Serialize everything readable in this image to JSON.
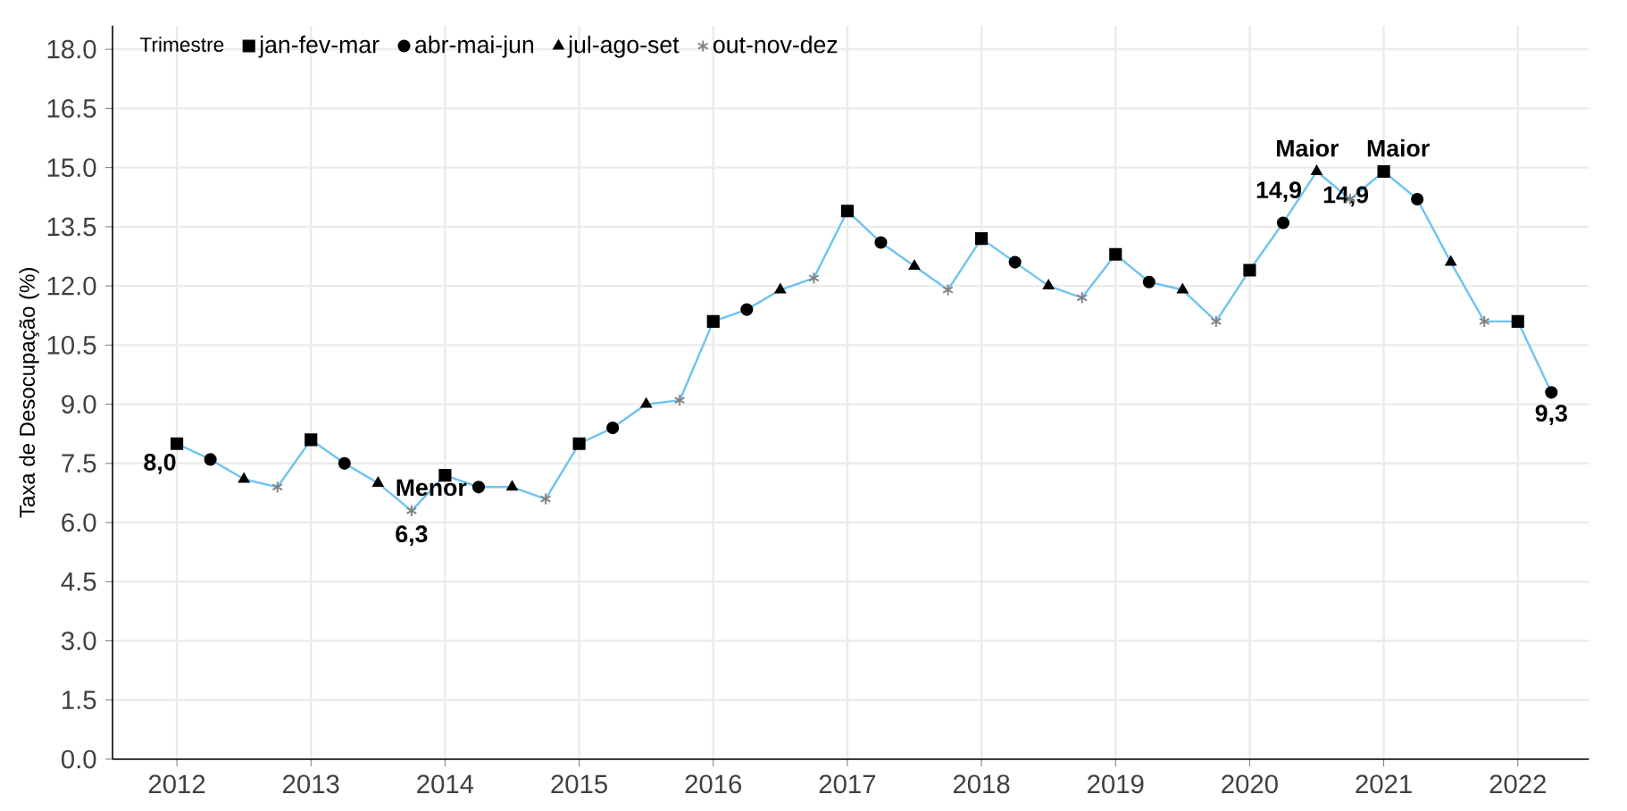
{
  "chart_data": {
    "type": "line",
    "ylabel": "Taxa de Desocupação (%)",
    "legend_title": "Trimestre",
    "xlim": [
      2011.52,
      2022.53
    ],
    "ylim": [
      0,
      18.6
    ],
    "xticks": [
      2012,
      2013,
      2014,
      2015,
      2016,
      2017,
      2018,
      2019,
      2020,
      2021,
      2022
    ],
    "yticks": [
      {
        "value": 0,
        "label": "0.0"
      },
      {
        "value": 1.5,
        "label": "1.5"
      },
      {
        "value": 3,
        "label": "3.0"
      },
      {
        "value": 4.5,
        "label": "4.5"
      },
      {
        "value": 6,
        "label": "6.0"
      },
      {
        "value": 7.5,
        "label": "7.5"
      },
      {
        "value": 9,
        "label": "9.0"
      },
      {
        "value": 10.5,
        "label": "10.5"
      },
      {
        "value": 12,
        "label": "12.0"
      },
      {
        "value": 13.5,
        "label": "13.5"
      },
      {
        "value": 15,
        "label": "15.0"
      },
      {
        "value": 16.5,
        "label": "16.5"
      },
      {
        "value": 18,
        "label": "18.0"
      }
    ],
    "grid": true,
    "legend": "top left",
    "series": [
      {
        "color": "#6ec3f0",
        "marker": "none",
        "x": [
          2012,
          2012.25,
          2012.5,
          2012.75,
          2013,
          2013.25,
          2013.5,
          2013.75,
          2014,
          2014.25,
          2014.5,
          2014.75,
          2015,
          2015.25,
          2015.5,
          2015.75,
          2016,
          2016.25,
          2016.5,
          2016.75,
          2017,
          2017.25,
          2017.5,
          2017.75,
          2018,
          2018.25,
          2018.5,
          2018.75,
          2019,
          2019.25,
          2019.5,
          2019.75,
          2020,
          2020.25,
          2020.5,
          2020.75,
          2021,
          2021.25,
          2021.5,
          2021.75,
          2022,
          2022.25
        ],
        "values": [
          8.0,
          7.6,
          7.1,
          6.9,
          8.1,
          7.5,
          7.0,
          6.3,
          7.2,
          6.9,
          6.9,
          6.6,
          8.0,
          8.4,
          9.0,
          9.1,
          11.1,
          11.4,
          11.9,
          12.2,
          13.9,
          13.1,
          12.5,
          11.9,
          13.2,
          12.6,
          12.0,
          11.7,
          12.8,
          12.1,
          11.9,
          11.1,
          12.4,
          13.6,
          14.9,
          14.2,
          14.9,
          14.2,
          12.6,
          11.1,
          11.1,
          9.3
        ]
      },
      {
        "type": "scatter",
        "name": "jan-fev-mar",
        "color": "#000000",
        "marker": "square",
        "x": [
          2012,
          2013,
          2014,
          2015,
          2016,
          2017,
          2018,
          2019,
          2020,
          2021,
          2022
        ],
        "values": [
          8.0,
          8.1,
          7.2,
          8.0,
          11.1,
          13.9,
          13.2,
          12.8,
          12.4,
          14.9,
          11.1
        ]
      },
      {
        "type": "scatter",
        "name": "abr-mai-jun",
        "color": "#000000",
        "marker": "circle",
        "x": [
          2012.25,
          2013.25,
          2014.25,
          2015.25,
          2016.25,
          2017.25,
          2018.25,
          2019.25,
          2020.25,
          2021.25,
          2022.25
        ],
        "values": [
          7.6,
          7.5,
          6.9,
          8.4,
          11.4,
          13.1,
          12.6,
          12.1,
          13.6,
          14.2,
          9.3
        ]
      },
      {
        "type": "scatter",
        "name": "jul-ago-set",
        "color": "#000000",
        "marker": "triangle",
        "x": [
          2012.5,
          2013.5,
          2014.5,
          2015.5,
          2016.5,
          2017.5,
          2018.5,
          2019.5,
          2020.5,
          2021.5
        ],
        "values": [
          7.1,
          7.0,
          6.9,
          9.0,
          11.9,
          12.5,
          12.0,
          11.9,
          14.9,
          12.6
        ]
      },
      {
        "type": "scatter",
        "name": "out-nov-dez",
        "color": "#808080",
        "marker": "cross",
        "x": [
          2012.75,
          2013.75,
          2014.75,
          2015.75,
          2016.75,
          2017.75,
          2018.75,
          2019.75,
          2020.75,
          2021.75
        ],
        "values": [
          6.9,
          6.3,
          6.6,
          9.1,
          12.2,
          11.9,
          11.7,
          11.1,
          14.2,
          11.1
        ]
      }
    ],
    "annotations": [
      {
        "text": "8,0",
        "x": 2012,
        "y": 8.0
      },
      {
        "text": "Menor",
        "x": 2013.75,
        "y": 6.3
      },
      {
        "text": "6,3",
        "x": 2013.75,
        "y": 6.3
      },
      {
        "text": "Maior",
        "x": 2020.5,
        "y": 14.9
      },
      {
        "text": "14,9",
        "x": 2020.5,
        "y": 14.9
      },
      {
        "text": "Maior",
        "x": 2021,
        "y": 14.9
      },
      {
        "text": "14,9",
        "x": 2021,
        "y": 14.9
      },
      {
        "text": "9,3",
        "x": 2022.25,
        "y": 9.3
      }
    ]
  }
}
